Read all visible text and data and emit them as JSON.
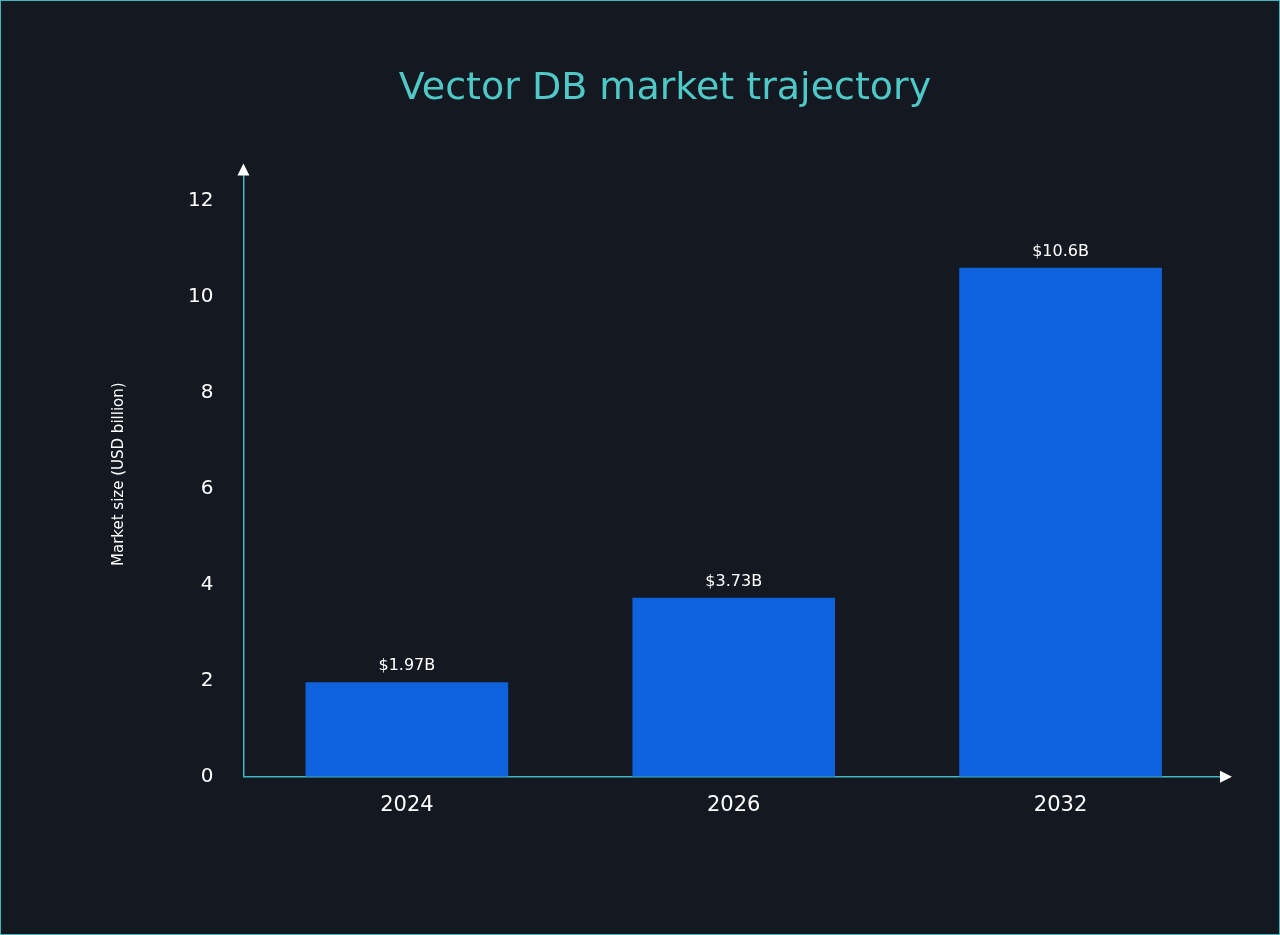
{
  "chart_data": {
    "type": "bar",
    "title": "Vector DB market trajectory",
    "ylabel": "Market size (USD billion)",
    "categories": [
      "2024",
      "2026",
      "2032"
    ],
    "values": [
      1.97,
      3.73,
      10.6
    ],
    "value_labels": [
      "$1.97B",
      "$3.73B",
      "$10.6B"
    ],
    "color": "#0f62de",
    "ylim": [
      0,
      12.6
    ],
    "yticks": [
      0,
      2,
      4,
      6,
      8,
      10,
      12
    ],
    "grid": false,
    "legend": false
  }
}
